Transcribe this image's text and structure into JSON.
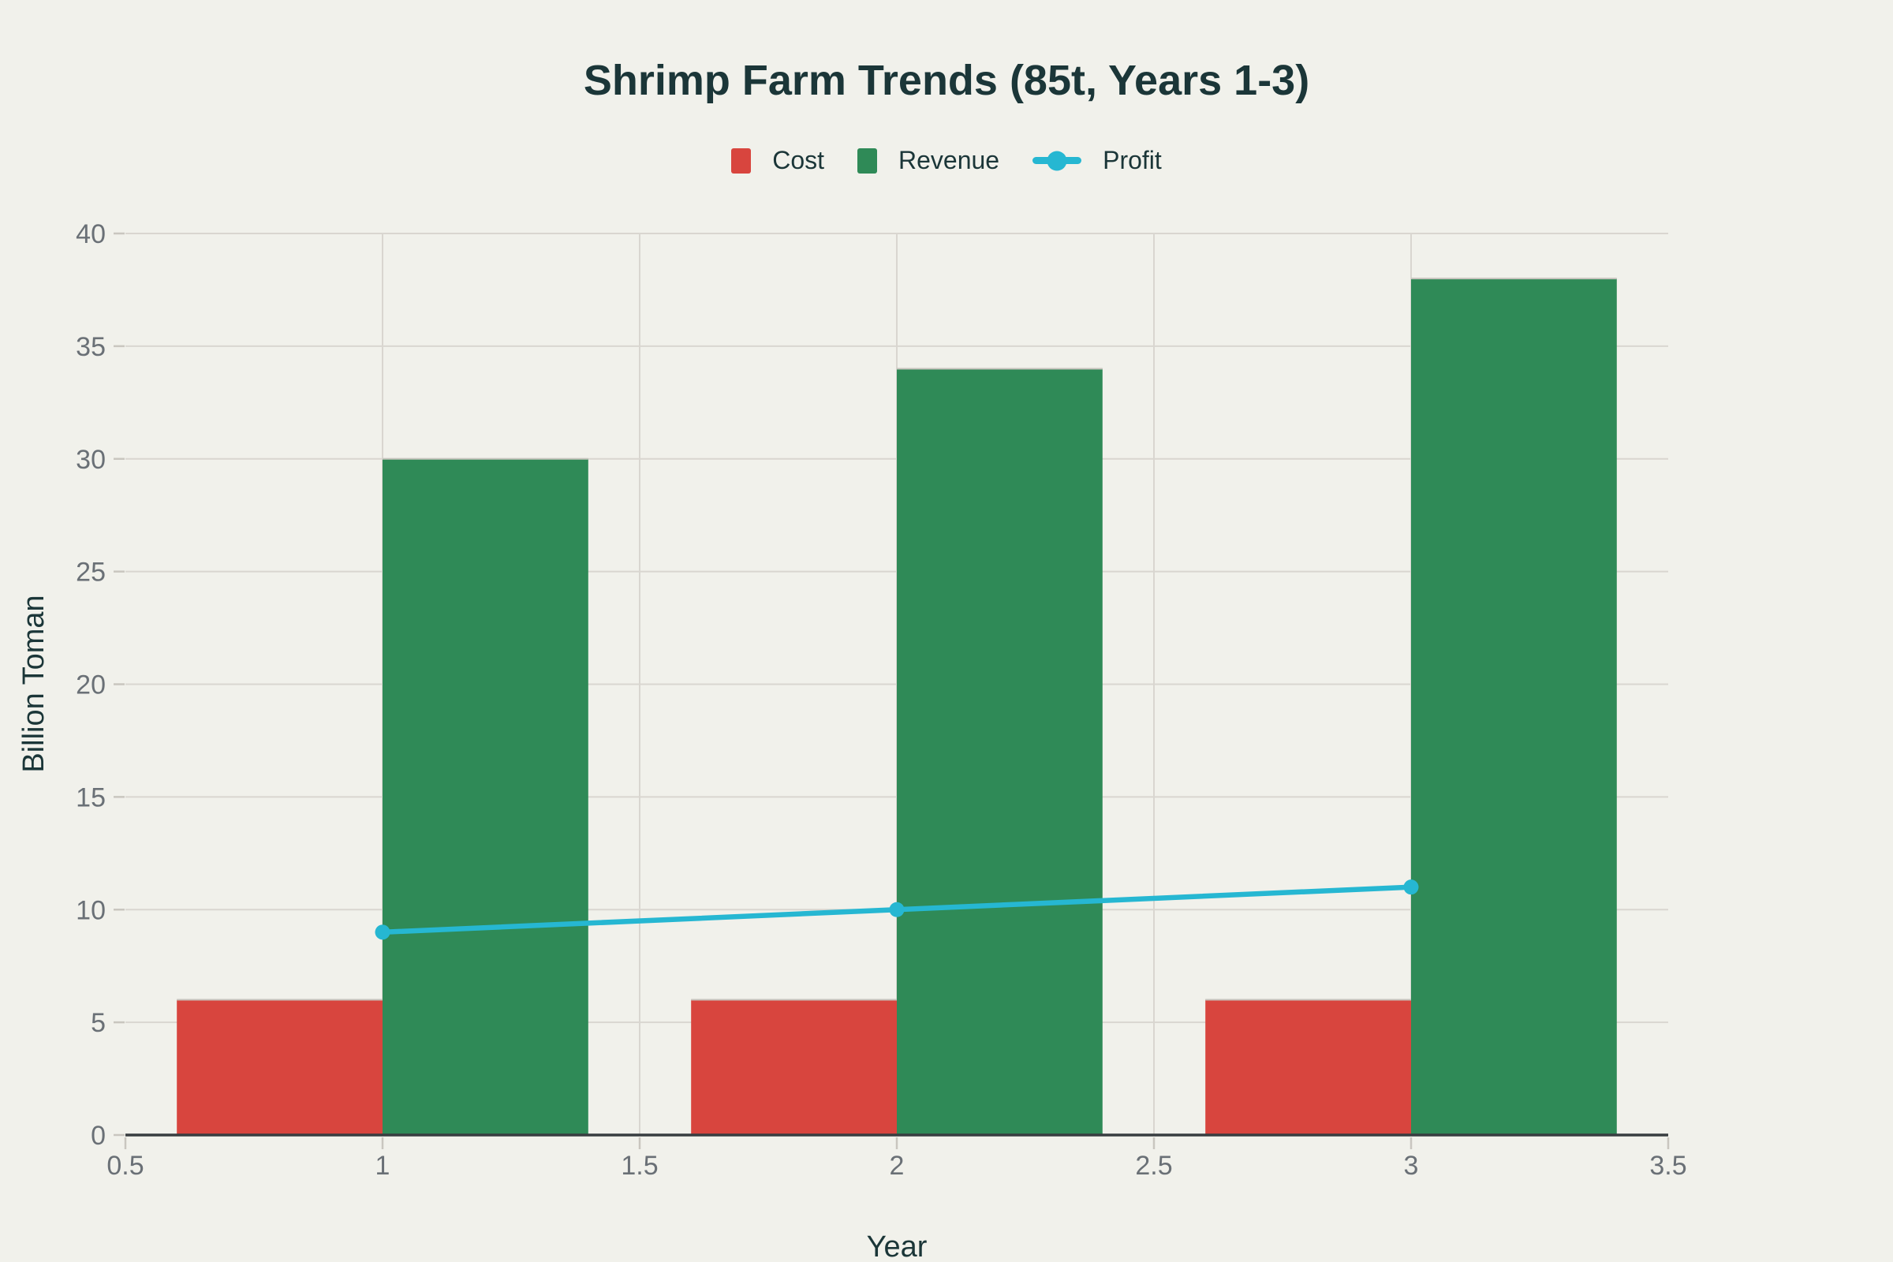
{
  "title": "Shrimp Farm Trends (85t, Years 1-3)",
  "legend": {
    "position": "top",
    "items": [
      {
        "id": "cost",
        "label": "Cost",
        "marker": "square",
        "color": "#d8453e"
      },
      {
        "id": "revenue",
        "label": "Revenue",
        "marker": "square",
        "color": "#2f8a57"
      },
      {
        "id": "profit",
        "label": "Profit",
        "marker": "line",
        "color": "#26b7d2"
      }
    ]
  },
  "chart_data": {
    "type": "bar",
    "subtype": "grouped-bars-with-line-overlay",
    "title": "Shrimp Farm Trends (85t, Years 1-3)",
    "xlabel": "Year",
    "ylabel": "Billion Toman",
    "x": [
      1,
      2,
      3
    ],
    "series": [
      {
        "name": "Cost",
        "type": "bar",
        "color": "#d8453e",
        "values": [
          6,
          6,
          6
        ]
      },
      {
        "name": "Revenue",
        "type": "bar",
        "color": "#2f8a57",
        "values": [
          30,
          34,
          38
        ]
      },
      {
        "name": "Profit",
        "type": "line",
        "color": "#26b7d2",
        "values": [
          9,
          10,
          11
        ]
      }
    ],
    "xlim": [
      0.5,
      3.5
    ],
    "ylim": [
      0,
      40
    ],
    "xticks": [
      0.5,
      1,
      1.5,
      2,
      2.5,
      3,
      3.5
    ],
    "xtick_labels": [
      "0.5",
      "1",
      "1.5",
      "2",
      "2.5",
      "3",
      "3.5"
    ],
    "yticks": [
      0,
      5,
      10,
      15,
      20,
      25,
      30,
      35,
      40
    ],
    "ytick_labels": [
      "0",
      "5",
      "10",
      "15",
      "20",
      "25",
      "30",
      "35",
      "40"
    ],
    "bar_width": 0.4,
    "grid": true,
    "legend_position": "top"
  },
  "colors": {
    "background": "#f1f1eb",
    "gridline": "#d9d6d0",
    "tick_mark": "#c9c6bf",
    "axis_line": "#383d40",
    "tick_label": "#6a7076",
    "heading_text": "#1b3638",
    "bar_top_border": "#c6c3bc"
  }
}
